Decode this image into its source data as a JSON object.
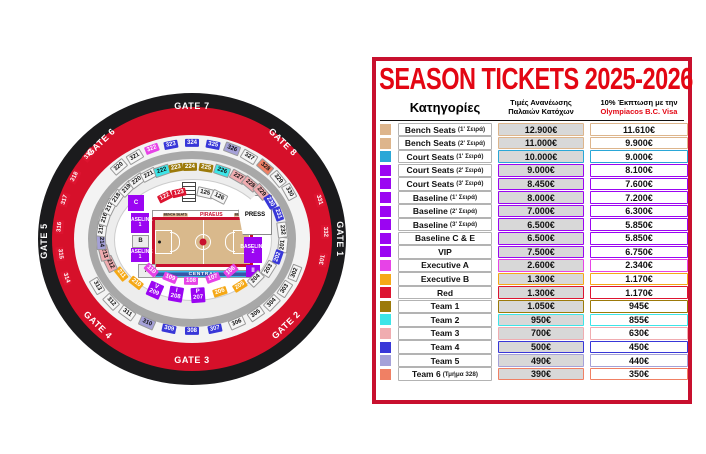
{
  "panel": {
    "title": "SEASON TICKETS 2025-2026",
    "header": {
      "col_category": "Κατηγορίες",
      "col_renewal_line1": "Τιμές Ανανέωσης",
      "col_renewal_line2": "Παλαιών Κατόχων",
      "col_visa_line1": "10% Έκπτωση με την",
      "col_visa_line2": "Olympiacos B.C. Visa"
    },
    "rows": [
      {
        "label": "Bench Seats",
        "sub": "(1' Σειρά)",
        "color": "tan",
        "renewal": "12.900€",
        "visa": "11.610€"
      },
      {
        "label": "Bench Seats",
        "sub": "(2' Σειρά)",
        "color": "tan",
        "renewal": "11.000€",
        "visa": "9.900€"
      },
      {
        "label": "Court Seats",
        "sub": "(1' Σειρά)",
        "color": "courtcyan",
        "renewal": "10.000€",
        "visa": "9.000€"
      },
      {
        "label": "Court Seats",
        "sub": "(2' Σειρά)",
        "color": "purple",
        "renewal": "9.000€",
        "visa": "8.100€"
      },
      {
        "label": "Court Seats",
        "sub": "(3' Σειρά)",
        "color": "purple",
        "renewal": "8.450€",
        "visa": "7.600€"
      },
      {
        "label": "Baseline",
        "sub": "(1' Σειρά)",
        "color": "purple",
        "renewal": "8.000€",
        "visa": "7.200€"
      },
      {
        "label": "Baseline",
        "sub": "(2' Σειρά)",
        "color": "purple",
        "renewal": "7.000€",
        "visa": "6.300€"
      },
      {
        "label": "Baseline",
        "sub": "(3' Σειρά)",
        "color": "purple",
        "renewal": "6.500€",
        "visa": "5.850€"
      },
      {
        "label": "Baseline C & E",
        "sub": "",
        "color": "purple",
        "renewal": "6.500€",
        "visa": "5.850€"
      },
      {
        "label": "VIP",
        "sub": "",
        "color": "vip",
        "renewal": "7.500€",
        "visa": "6.750€"
      },
      {
        "label": "Executive A",
        "sub": "",
        "color": "magenta",
        "renewal": "2.600€",
        "visa": "2.340€"
      },
      {
        "label": "Executive B",
        "sub": "",
        "color": "orange",
        "renewal": "1.300€",
        "visa": "1.170€"
      },
      {
        "label": "Red",
        "sub": "",
        "color": "red",
        "renewal": "1.300€",
        "visa": "1.170€"
      },
      {
        "label": "Team 1",
        "sub": "",
        "color": "gold",
        "renewal": "1.050€",
        "visa": "945€"
      },
      {
        "label": "Team 2",
        "sub": "",
        "color": "teamcyan",
        "renewal": "950€",
        "visa": "855€"
      },
      {
        "label": "Team 3",
        "sub": "",
        "color": "pink",
        "renewal": "700€",
        "visa": "630€"
      },
      {
        "label": "Team 4",
        "sub": "",
        "color": "blue",
        "renewal": "500€",
        "visa": "450€"
      },
      {
        "label": "Team 5",
        "sub": "",
        "color": "lavender",
        "renewal": "490€",
        "visa": "440€"
      },
      {
        "label": "Team 6",
        "sub": "(Τμήμα 328)",
        "color": "salmon",
        "renewal": "390€",
        "visa": "350€"
      }
    ]
  },
  "colors": {
    "tan": "#ddb58c",
    "courtcyan": "#2aa7d7",
    "purple": "#9b05f2",
    "vip": "#9b05f2",
    "magenta": "#e743e7",
    "orange": "#f5a816",
    "red": "#dd1430",
    "gold": "#9c7a0a",
    "teamcyan": "#3de5e8",
    "pink": "#f0acb0",
    "blue": "#3837d8",
    "lavender": "#a5a1d8",
    "salmon": "#f08064",
    "gray": "#f6f6f6",
    "accent_red": "#e30613",
    "ring_red": "#d6102a"
  },
  "stadium": {
    "gates": [
      {
        "label": "GATE 7",
        "a": 90,
        "r": "red",
        "rot": 0
      },
      {
        "label": "GATE 6",
        "a": 133,
        "r": "red",
        "rot": -44
      },
      {
        "label": "GATE 8",
        "a": 47,
        "r": "red",
        "rot": 44
      },
      {
        "label": "GATE 5",
        "a": 181,
        "r": "black",
        "rot": -90
      },
      {
        "label": "GATE 1",
        "a": 0,
        "r": "black",
        "rot": 90
      },
      {
        "label": "GATE 4",
        "a": -135,
        "r": "red",
        "rot": 44
      },
      {
        "label": "GATE 3",
        "a": -90,
        "r": "red",
        "rot": 0
      },
      {
        "label": "GATE 2",
        "a": -45,
        "r": "red",
        "rot": -44
      }
    ],
    "sections": [
      {
        "n": "301",
        "a": -10,
        "r": "red",
        "c": "red"
      },
      {
        "n": "331",
        "a": 17,
        "r": "red",
        "c": "red"
      },
      {
        "n": "332",
        "a": 3,
        "r": "red",
        "c": "red"
      },
      {
        "n": "314",
        "a": -161,
        "r": "red",
        "c": "red"
      },
      {
        "n": "315",
        "a": -173,
        "r": "red",
        "c": "red"
      },
      {
        "n": "316",
        "a": 175,
        "r": "red",
        "c": "red"
      },
      {
        "n": "317",
        "a": 163,
        "r": "red",
        "c": "red"
      },
      {
        "n": "318",
        "a": 152,
        "r": "red",
        "c": "red"
      },
      {
        "n": "319",
        "a": 141,
        "r": "red",
        "c": "red"
      },
      {
        "n": "302",
        "a": -22,
        "r": "outer",
        "c": "gray"
      },
      {
        "n": "303",
        "a": -33,
        "r": "outer",
        "c": "gray"
      },
      {
        "n": "304",
        "a": -44,
        "r": "outer",
        "c": "gray"
      },
      {
        "n": "305",
        "a": -55,
        "r": "outer",
        "c": "gray"
      },
      {
        "n": "306",
        "a": -66,
        "r": "outer",
        "c": "gray"
      },
      {
        "n": "307",
        "a": -78,
        "r": "outer",
        "c": "blue"
      },
      {
        "n": "308",
        "a": -90,
        "r": "outer",
        "c": "blue"
      },
      {
        "n": "309",
        "a": -102,
        "r": "outer",
        "c": "blue"
      },
      {
        "n": "310",
        "a": -114,
        "r": "outer",
        "c": "lavender"
      },
      {
        "n": "311",
        "a": -126,
        "r": "outer",
        "c": "gray"
      },
      {
        "n": "312",
        "a": -137,
        "r": "outer",
        "c": "gray"
      },
      {
        "n": "313",
        "a": -149,
        "r": "outer",
        "c": "gray"
      },
      {
        "n": "320",
        "a": 131,
        "r": "outer",
        "c": "gray"
      },
      {
        "n": "321",
        "a": 121,
        "r": "outer",
        "c": "gray"
      },
      {
        "n": "322",
        "a": 111,
        "r": "outer",
        "c": "magenta"
      },
      {
        "n": "323",
        "a": 101,
        "r": "outer",
        "c": "blue"
      },
      {
        "n": "324",
        "a": 90,
        "r": "outer",
        "c": "blue"
      },
      {
        "n": "325",
        "a": 79,
        "r": "outer",
        "c": "blue"
      },
      {
        "n": "326",
        "a": 69,
        "r": "outer",
        "c": "lavender"
      },
      {
        "n": "327",
        "a": 59,
        "r": "outer",
        "c": "gray"
      },
      {
        "n": "328",
        "a": 49,
        "r": "outer",
        "c": "salmon"
      },
      {
        "n": "329",
        "a": 39,
        "r": "outer",
        "c": "gray"
      },
      {
        "n": "330",
        "a": 29,
        "r": "outer",
        "c": "gray"
      },
      {
        "n": "201",
        "a": -6,
        "r": "mid",
        "c": "gray"
      },
      {
        "n": "202",
        "a": -19,
        "r": "mid",
        "c": "blue"
      },
      {
        "n": "203",
        "a": -32,
        "r": "mid",
        "c": "gray"
      },
      {
        "n": "204",
        "a": -45,
        "r": "mid",
        "c": "gray"
      },
      {
        "n": "205",
        "a": -58,
        "r": "mid",
        "c": "orange"
      },
      {
        "n": "206",
        "a": -72,
        "r": "mid",
        "c": "orange"
      },
      {
        "n": "P\n207",
        "a": -86,
        "r": "mid",
        "c": "vip"
      },
      {
        "n": "I\n208",
        "a": -100,
        "r": "mid",
        "c": "vip"
      },
      {
        "n": "V\n209",
        "a": -114,
        "r": "mid",
        "c": "vip"
      },
      {
        "n": "210",
        "a": -128,
        "r": "mid",
        "c": "orange"
      },
      {
        "n": "211",
        "a": -141,
        "r": "mid",
        "c": "orange"
      },
      {
        "n": "212",
        "a": -154,
        "r": "mid",
        "c": "pink"
      },
      {
        "n": "213",
        "a": -166,
        "r": "mid",
        "c": "pink"
      },
      {
        "n": "214",
        "a": -177,
        "r": "mid",
        "c": "lavender"
      },
      {
        "n": "215",
        "a": 172,
        "r": "mid",
        "c": "gray"
      },
      {
        "n": "216",
        "a": 163,
        "r": "mid",
        "c": "gray"
      },
      {
        "n": "217",
        "a": 154,
        "r": "mid",
        "c": "gray"
      },
      {
        "n": "218",
        "a": 145,
        "r": "mid",
        "c": "gray"
      },
      {
        "n": "219",
        "a": 136,
        "r": "mid",
        "c": "gray"
      },
      {
        "n": "220",
        "a": 127,
        "r": "mid",
        "c": "gray"
      },
      {
        "n": "221",
        "a": 118,
        "r": "mid",
        "c": "gray"
      },
      {
        "n": "222",
        "a": 109,
        "r": "mid",
        "c": "teamcyan"
      },
      {
        "n": "223",
        "a": 100,
        "r": "mid",
        "c": "gold"
      },
      {
        "n": "224",
        "a": 91,
        "r": "mid",
        "c": "gold"
      },
      {
        "n": "225",
        "a": 81,
        "r": "mid",
        "c": "gold"
      },
      {
        "n": "226",
        "a": 71,
        "r": "mid",
        "c": "teamcyan"
      },
      {
        "n": "227",
        "a": 60,
        "r": "mid",
        "c": "pink"
      },
      {
        "n": "228",
        "a": 50,
        "r": "mid",
        "c": "pink"
      },
      {
        "n": "229",
        "a": 41,
        "r": "mid",
        "c": "pink"
      },
      {
        "n": "230",
        "a": 31,
        "r": "mid",
        "c": "blue"
      },
      {
        "n": "231",
        "a": 20,
        "r": "mid",
        "c": "blue"
      },
      {
        "n": "232",
        "a": 7,
        "r": "mid",
        "c": "gray"
      },
      {
        "n": "122",
        "a": 117,
        "r": "inner",
        "c": "red"
      },
      {
        "n": "123",
        "a": 103,
        "r": "inner",
        "c": "red"
      },
      {
        "n": "125",
        "a": 77,
        "r": "inner",
        "c": "gray"
      },
      {
        "n": "126",
        "a": 63,
        "r": "inner",
        "c": "gray"
      },
      {
        "n": "106",
        "a": -50,
        "r": "inner",
        "c": "magenta"
      },
      {
        "n": "107",
        "a": -70,
        "r": "inner",
        "c": "magenta"
      },
      {
        "n": "108",
        "a": -91,
        "r": "inner",
        "c": "magenta"
      },
      {
        "n": "109",
        "a": -112,
        "r": "inner",
        "c": "magenta"
      },
      {
        "n": "110",
        "a": -133,
        "r": "inner",
        "c": "magenta"
      }
    ],
    "court": {
      "piraeus": "PIRAEUS",
      "bench": "BENCH SEATS",
      "central": "CENTRAL",
      "press": "PRESS",
      "baseline1": "BASELINE\n1",
      "baseline2": "BASELINE\n2",
      "letter_a": "A",
      "letter_b": "B",
      "letter_c": "C",
      "letter_ii": "II"
    }
  }
}
